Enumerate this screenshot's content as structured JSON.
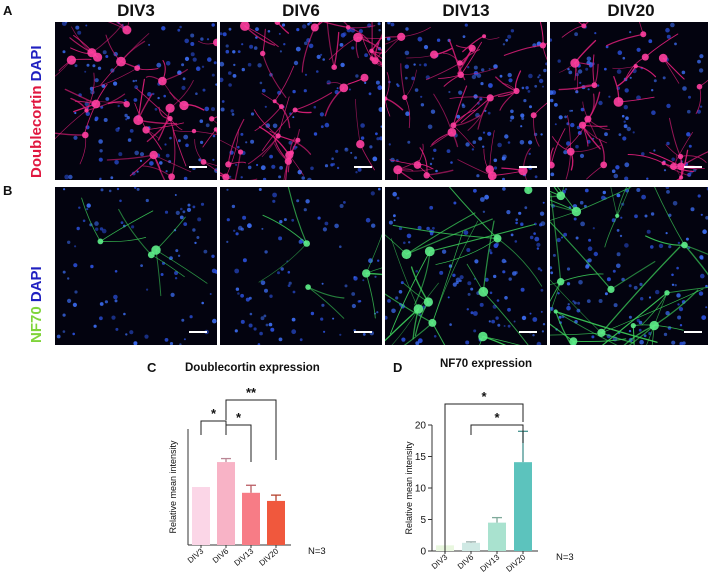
{
  "panels": {
    "A": "A",
    "B": "B",
    "C": "C",
    "D": "D"
  },
  "columns": [
    "DIV3",
    "DIV6",
    "DIV13",
    "DIV20"
  ],
  "row_labels": {
    "top": {
      "stain": "Doublecortin",
      "dapi": "DAPI",
      "stain_color": "#e0173f",
      "dapi_color": "#2020c0"
    },
    "bottom": {
      "stain": "NF70",
      "dapi": "DAPI",
      "stain_color": "#7fd43a",
      "dapi_color": "#2020c0"
    }
  },
  "chart_data": [
    {
      "type": "bar",
      "title": "Doublecortin expression",
      "ylabel": "Relative mean intensity",
      "categories": [
        "DIV3",
        "DIV6",
        "DIV13",
        "DIV20"
      ],
      "values": [
        1.0,
        1.43,
        0.9,
        0.76
      ],
      "errors": [
        0,
        0.06,
        0.13,
        0.1
      ],
      "ylim": [
        0,
        2.0
      ],
      "yticks": [],
      "colors": [
        "#fbd6e7",
        "#f8b3c6",
        "#f77c86",
        "#f0583d"
      ],
      "significance": [
        {
          "from": "DIV3",
          "to": "DIV6",
          "label": "*"
        },
        {
          "from": "DIV6",
          "to": "DIV13",
          "label": "*"
        },
        {
          "from": "DIV6",
          "to": "DIV20",
          "label": "**"
        }
      ],
      "n_label": "N=3"
    },
    {
      "type": "bar",
      "title": "NF70 expression",
      "ylabel": "Relative mean intensity",
      "categories": [
        "DIV3",
        "DIV6",
        "DIV13",
        "DIV20"
      ],
      "values": [
        0.9,
        1.3,
        4.5,
        14.1
      ],
      "errors": [
        0,
        0.15,
        0.8,
        4.9
      ],
      "ylim": [
        0,
        20
      ],
      "yticks": [
        0,
        5,
        10,
        15,
        20
      ],
      "colors": [
        "#e9f7df",
        "#cfe9e4",
        "#a9e2cf",
        "#5cc3bd"
      ],
      "significance": [
        {
          "from": "DIV6",
          "to": "DIV20",
          "label": "*"
        },
        {
          "from": "DIV3",
          "to": "DIV20",
          "label": "*"
        }
      ],
      "n_label": "N=3"
    }
  ]
}
